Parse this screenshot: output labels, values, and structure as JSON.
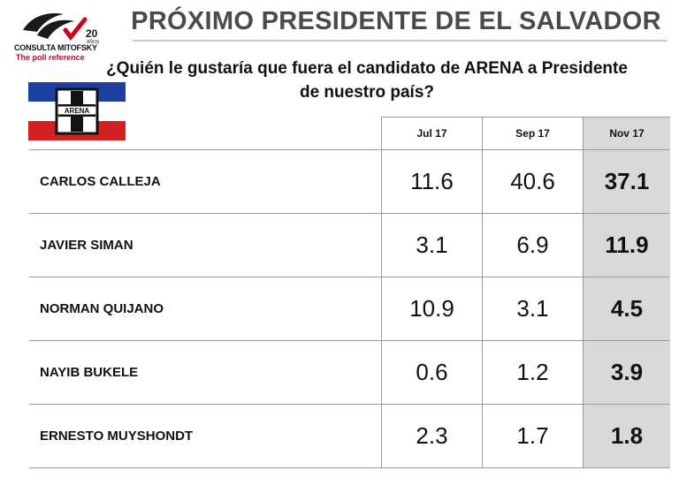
{
  "header": {
    "title": "PRÓXIMO PRESIDENTE DE EL SALVADOR",
    "logo": {
      "name": "CONSULTA MITOFSKY",
      "tagline": "The poll reference",
      "badge": "20",
      "badge_suffix": "AÑOS"
    },
    "question": "¿Quién le gustaría que fuera el candidato de ARENA a Presidente de nuestro país?"
  },
  "flag": {
    "label": "ARENA",
    "colors": {
      "blue": "#1c3fa0",
      "red": "#d32020",
      "white": "#ffffff"
    }
  },
  "colors": {
    "highlight_column": "#d9d9d9",
    "title_text": "#4a4a4a",
    "logo_red": "#d0021b"
  },
  "chart_data": {
    "type": "table",
    "columns": [
      "Jul 17",
      "Sep 17",
      "Nov 17"
    ],
    "highlighted_column": "Nov 17",
    "rows": [
      {
        "name": "CARLOS CALLEJA",
        "values": [
          "11.6",
          "40.6",
          "37.1"
        ]
      },
      {
        "name": "JAVIER SIMAN",
        "values": [
          "3.1",
          "6.9",
          "11.9"
        ]
      },
      {
        "name": "NORMAN QUIJANO",
        "values": [
          "10.9",
          "3.1",
          "4.5"
        ]
      },
      {
        "name": "NAYIB BUKELE",
        "values": [
          "0.6",
          "1.2",
          "3.9"
        ]
      },
      {
        "name": "ERNESTO MUYSHONDT",
        "values": [
          "2.3",
          "1.7",
          "1.8"
        ]
      }
    ]
  }
}
